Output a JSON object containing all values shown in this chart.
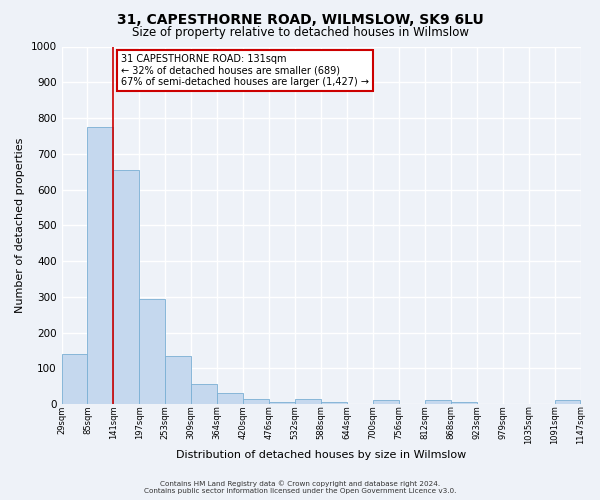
{
  "title": "31, CAPESTHORNE ROAD, WILMSLOW, SK9 6LU",
  "subtitle": "Size of property relative to detached houses in Wilmslow",
  "xlabel": "Distribution of detached houses by size in Wilmslow",
  "ylabel": "Number of detached properties",
  "bar_heights": [
    140,
    775,
    655,
    295,
    135,
    57,
    30,
    15,
    5,
    15,
    5,
    0,
    10,
    0,
    10,
    5,
    0,
    0,
    0,
    10
  ],
  "bar_labels": [
    "29sqm",
    "85sqm",
    "141sqm",
    "197sqm",
    "253sqm",
    "309sqm",
    "364sqm",
    "420sqm",
    "476sqm",
    "532sqm",
    "588sqm",
    "644sqm",
    "700sqm",
    "756sqm",
    "812sqm",
    "868sqm",
    "923sqm",
    "979sqm",
    "1035sqm",
    "1091sqm",
    "1147sqm"
  ],
  "bar_color": "#c5d8ee",
  "bar_edge_color": "#7aafd4",
  "vline_x_index": 2,
  "vline_color": "#cc0000",
  "ylim": [
    0,
    1000
  ],
  "yticks": [
    0,
    100,
    200,
    300,
    400,
    500,
    600,
    700,
    800,
    900,
    1000
  ],
  "annotation_title": "31 CAPESTHORNE ROAD: 131sqm",
  "annotation_line1": "← 32% of detached houses are smaller (689)",
  "annotation_line2": "67% of semi-detached houses are larger (1,427) →",
  "annotation_box_color": "#ffffff",
  "annotation_box_edge": "#cc0000",
  "footer_line1": "Contains HM Land Registry data © Crown copyright and database right 2024.",
  "footer_line2": "Contains public sector information licensed under the Open Government Licence v3.0.",
  "background_color": "#eef2f8",
  "plot_bg_color": "#eef2f8",
  "grid_color": "#ffffff",
  "title_fontsize": 10,
  "subtitle_fontsize": 8.5,
  "ylabel_fontsize": 8,
  "xlabel_fontsize": 8
}
